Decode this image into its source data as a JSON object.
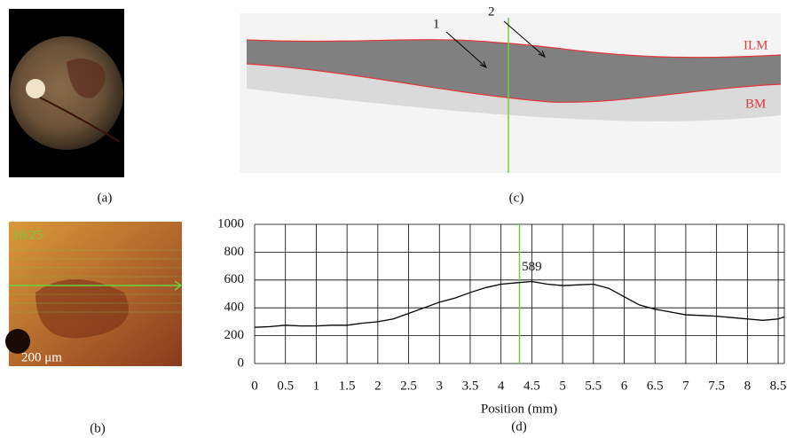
{
  "panels": {
    "a": {
      "label": "(a)"
    },
    "b": {
      "label": "(b)",
      "scan_label": "16/25",
      "scale_label": "200 μm"
    },
    "c": {
      "label": "(c)",
      "arrow_1": "1",
      "arrow_2": "2",
      "top_layer": "ILM",
      "bottom_layer": "BM"
    },
    "d": {
      "label": "(d)"
    }
  },
  "chart_data": {
    "type": "line",
    "x_label": "Position (mm)",
    "x": [
      0,
      0.25,
      0.5,
      0.75,
      1,
      1.25,
      1.5,
      1.75,
      2,
      2.25,
      2.5,
      2.75,
      3,
      3.25,
      3.5,
      3.75,
      4,
      4.25,
      4.5,
      4.75,
      5,
      5.25,
      5.5,
      5.75,
      6,
      6.25,
      6.5,
      6.75,
      7,
      7.25,
      7.5,
      7.75,
      8,
      8.25,
      8.5,
      8.6
    ],
    "series": [
      {
        "color": "#000000",
        "values": [
          260,
          265,
          275,
          270,
          270,
          275,
          275,
          290,
          300,
          320,
          360,
          400,
          440,
          470,
          510,
          545,
          570,
          580,
          589,
          570,
          560,
          565,
          570,
          540,
          480,
          420,
          390,
          370,
          350,
          345,
          340,
          330,
          320,
          310,
          320,
          335
        ]
      }
    ],
    "peak": {
      "x": 4.5,
      "value": 589
    },
    "marker_x": 4.3,
    "marker_color": "#6fcf3f",
    "xlim": [
      0,
      8.6
    ],
    "ylim": [
      0,
      1000
    ],
    "xticks": [
      0,
      0.5,
      1,
      1.5,
      2,
      2.5,
      3,
      3.5,
      4,
      4.5,
      5,
      5.5,
      6,
      6.5,
      7,
      7.5,
      8,
      8.5
    ],
    "yticks": [
      0,
      200,
      400,
      600,
      800,
      1000
    ],
    "grid": true
  }
}
